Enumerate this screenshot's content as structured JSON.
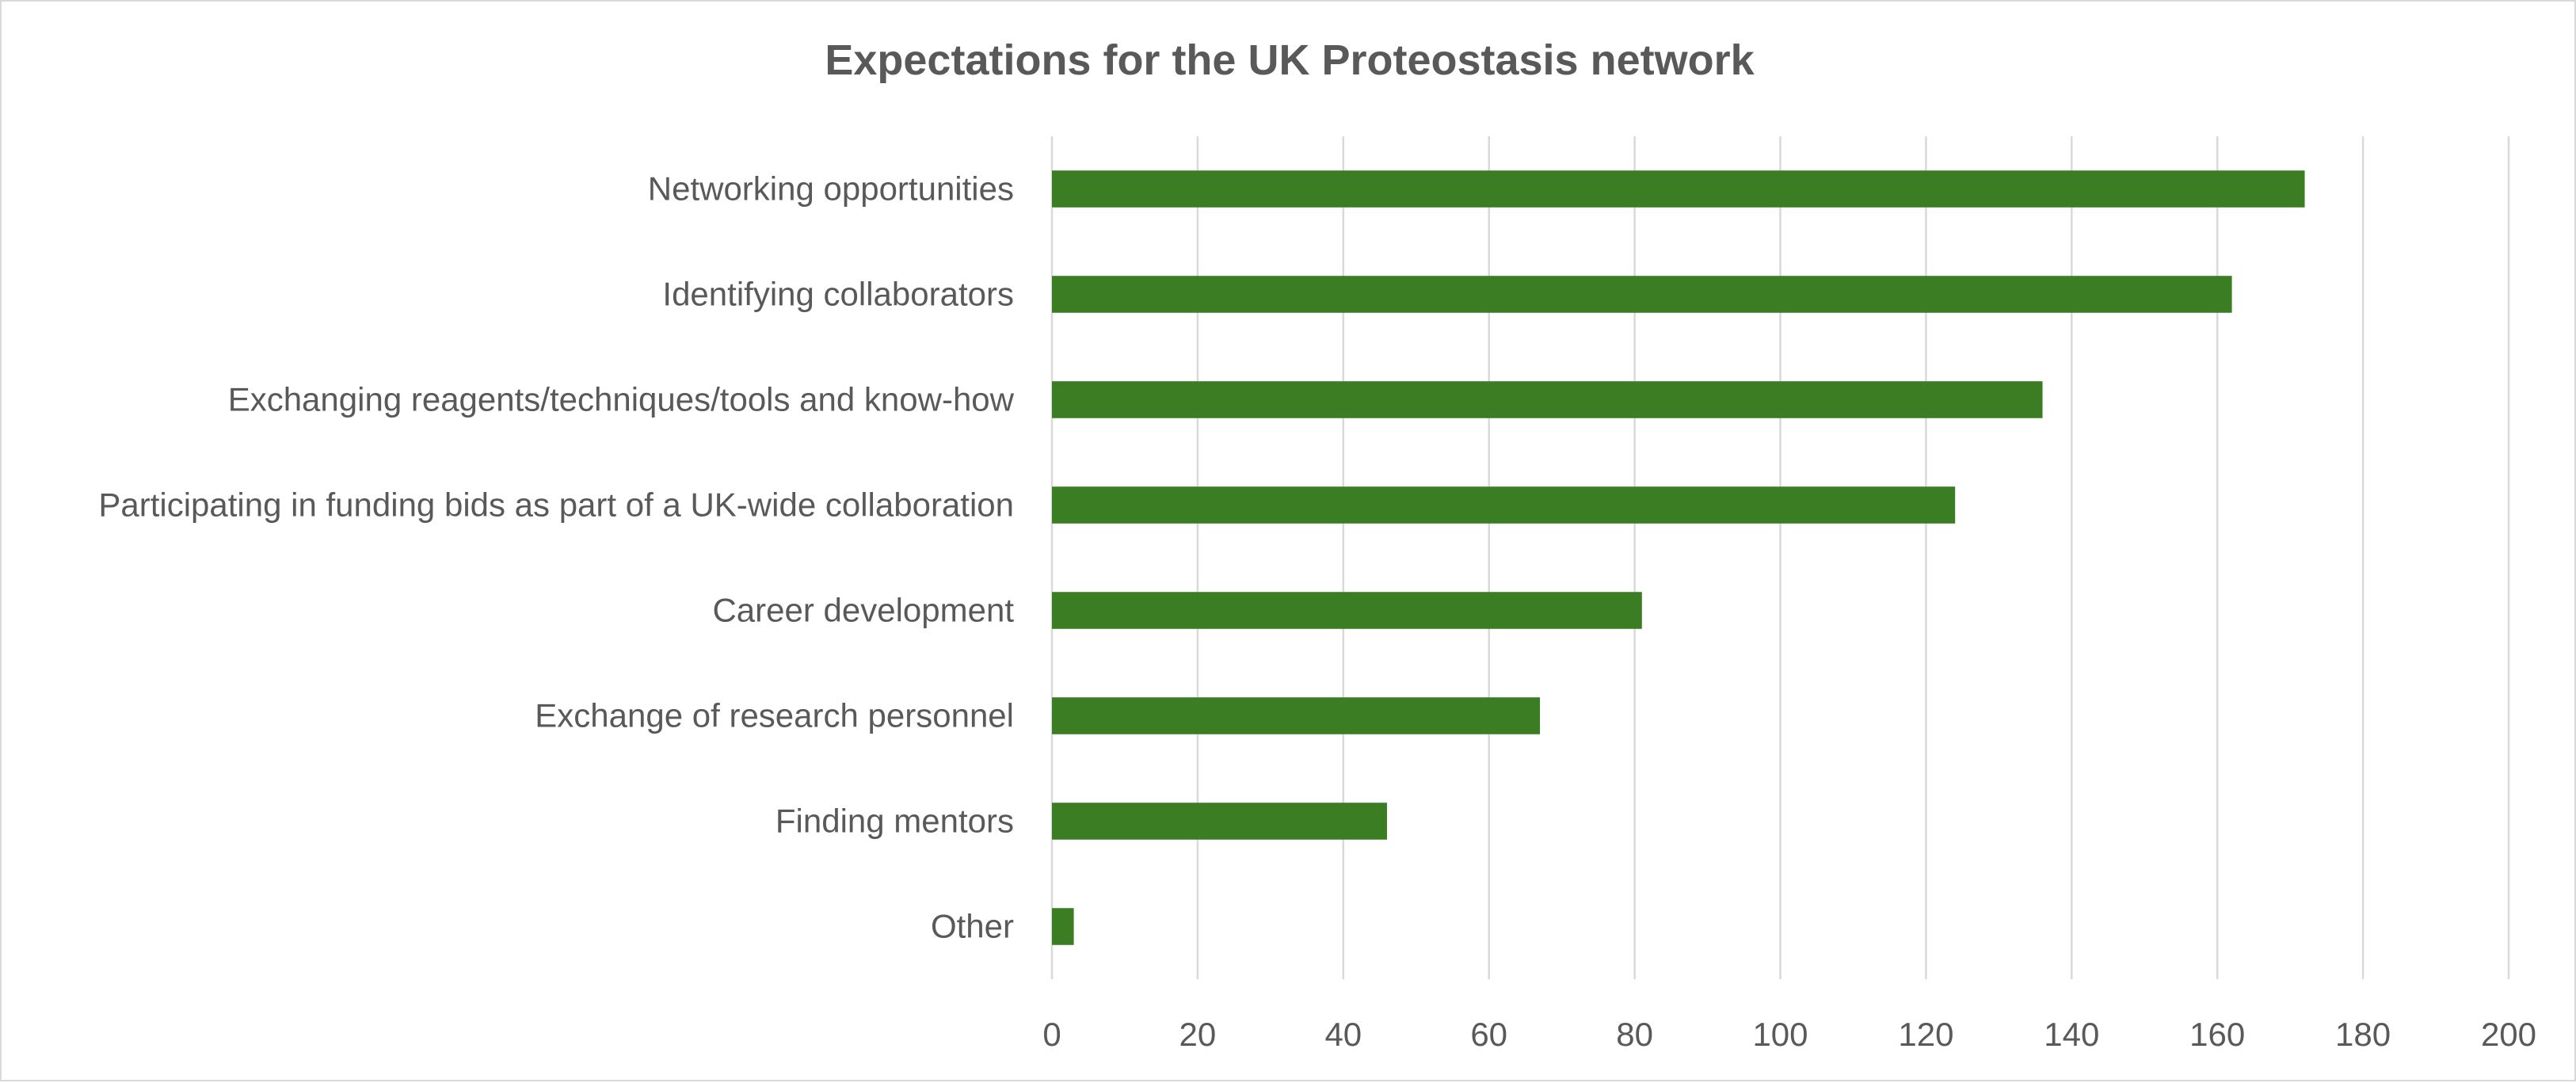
{
  "chart_data": {
    "type": "bar",
    "orientation": "horizontal",
    "title": "Expectations for the UK Proteostasis network",
    "xlabel": "",
    "ylabel": "",
    "categories": [
      "Networking opportunities",
      "Identifying collaborators",
      "Exchanging reagents/techniques/tools and know-how",
      "Participating in funding bids as part of a UK-wide collaboration",
      "Career development",
      "Exchange of research personnel",
      "Finding mentors",
      "Other"
    ],
    "values": [
      172,
      162,
      136,
      124,
      81,
      67,
      46,
      3
    ],
    "xlim": [
      0,
      200
    ],
    "ticks": [
      "0",
      "20",
      "40",
      "60",
      "80",
      "100",
      "120",
      "140",
      "160",
      "180",
      "200"
    ],
    "tick_values": [
      0,
      20,
      40,
      60,
      80,
      100,
      120,
      140,
      160,
      180,
      200
    ],
    "grid": true,
    "legend": "none",
    "bar_color": "#3a7d22",
    "gridline_color": "#d9d9d9",
    "text_color": "#595959"
  }
}
